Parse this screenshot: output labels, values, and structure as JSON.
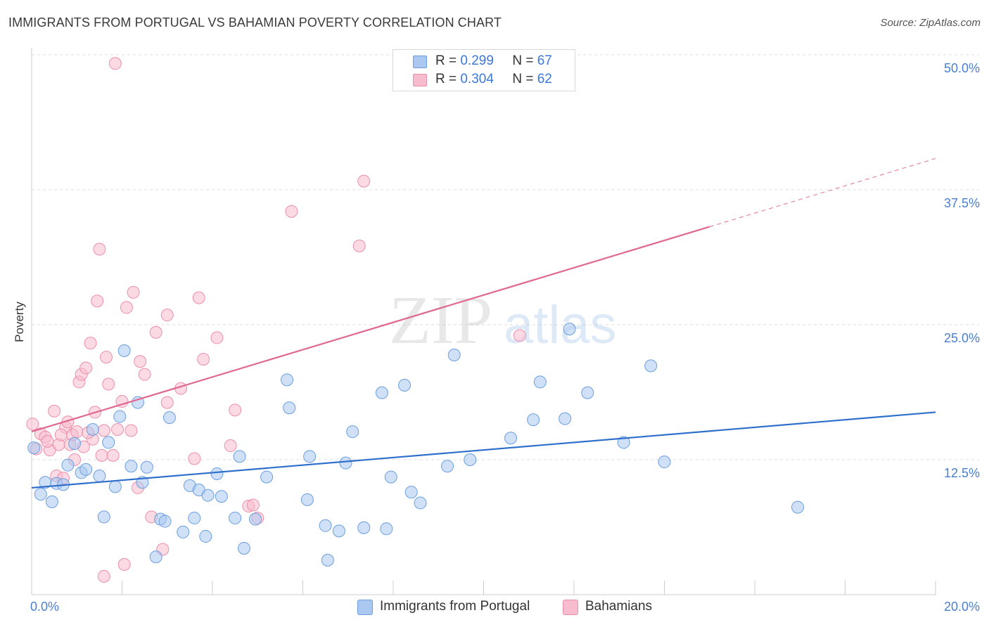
{
  "title": "IMMIGRANTS FROM PORTUGAL VS BAHAMIAN POVERTY CORRELATION CHART",
  "source": "Source: ZipAtlas.com",
  "watermark": {
    "zip": "ZIP",
    "atlas": "atlas"
  },
  "legend": {
    "rows": [
      {
        "r_label": "R =",
        "r_value": "0.299",
        "n_label": "N =",
        "n_value": "67"
      },
      {
        "r_label": "R =",
        "r_value": "0.304",
        "n_label": "N =",
        "n_value": "62"
      }
    ]
  },
  "bottom_legend": [
    "Immigrants from Portugal",
    "Bahamians"
  ],
  "colors": {
    "blue_fill": "#aac8f0",
    "blue_stroke": "#6a9ee0",
    "blue_line": "#2f6fcc",
    "pink_fill": "#f7bccd",
    "pink_stroke": "#ec8fac",
    "pink_line": "#e06890",
    "tick_label": "#4a7fcf",
    "grid": "#dddddd"
  },
  "chart_data": {
    "type": "scatter",
    "title": "IMMIGRANTS FROM PORTUGAL VS BAHAMIAN POVERTY CORRELATION CHART",
    "xlabel": "",
    "ylabel": "Poverty",
    "xlim": [
      0,
      20
    ],
    "ylim": [
      0,
      50
    ],
    "x_tick_labels": [
      "0.0%",
      "20.0%"
    ],
    "y_ticks": [
      12.5,
      25.0,
      37.5,
      50.0
    ],
    "y_tick_labels": [
      "12.5%",
      "25.0%",
      "37.5%",
      "50.0%"
    ],
    "grid": true,
    "legend_position": "top-center",
    "series": [
      {
        "name": "Immigrants from Portugal",
        "r": 0.299,
        "n": 67,
        "trend": {
          "x0": 0,
          "y0": 9.9,
          "x1": 20,
          "y1": 16.9,
          "dashed_from": null
        },
        "points": [
          [
            0.05,
            13.6
          ],
          [
            0.2,
            9.3
          ],
          [
            0.3,
            10.4
          ],
          [
            0.45,
            8.6
          ],
          [
            0.55,
            10.3
          ],
          [
            0.7,
            10.2
          ],
          [
            0.8,
            12.0
          ],
          [
            0.95,
            14.0
          ],
          [
            1.1,
            11.3
          ],
          [
            1.2,
            11.6
          ],
          [
            1.35,
            15.3
          ],
          [
            1.5,
            11.0
          ],
          [
            1.6,
            7.2
          ],
          [
            1.7,
            14.1
          ],
          [
            1.85,
            10.0
          ],
          [
            1.95,
            16.5
          ],
          [
            2.05,
            22.6
          ],
          [
            2.2,
            11.9
          ],
          [
            2.35,
            17.8
          ],
          [
            2.45,
            10.4
          ],
          [
            2.55,
            11.8
          ],
          [
            2.75,
            3.5
          ],
          [
            2.85,
            7.0
          ],
          [
            2.95,
            6.8
          ],
          [
            3.05,
            16.4
          ],
          [
            3.35,
            5.8
          ],
          [
            3.5,
            10.1
          ],
          [
            3.6,
            7.1
          ],
          [
            3.7,
            9.7
          ],
          [
            3.85,
            5.4
          ],
          [
            3.9,
            9.2
          ],
          [
            4.1,
            11.2
          ],
          [
            4.2,
            9.1
          ],
          [
            4.5,
            7.1
          ],
          [
            4.6,
            12.8
          ],
          [
            4.7,
            4.3
          ],
          [
            4.95,
            7.0
          ],
          [
            5.2,
            10.9
          ],
          [
            5.65,
            19.9
          ],
          [
            5.7,
            17.3
          ],
          [
            6.1,
            8.8
          ],
          [
            6.15,
            12.8
          ],
          [
            6.5,
            6.4
          ],
          [
            6.55,
            3.2
          ],
          [
            6.8,
            5.9
          ],
          [
            6.95,
            12.2
          ],
          [
            7.1,
            15.1
          ],
          [
            7.35,
            6.2
          ],
          [
            7.75,
            18.7
          ],
          [
            7.85,
            6.1
          ],
          [
            7.95,
            10.9
          ],
          [
            8.25,
            19.4
          ],
          [
            8.4,
            9.5
          ],
          [
            8.6,
            8.5
          ],
          [
            9.2,
            11.9
          ],
          [
            9.35,
            22.2
          ],
          [
            9.7,
            12.5
          ],
          [
            10.6,
            14.5
          ],
          [
            11.1,
            16.2
          ],
          [
            11.25,
            19.7
          ],
          [
            11.8,
            16.3
          ],
          [
            11.9,
            24.6
          ],
          [
            12.3,
            18.7
          ],
          [
            13.1,
            14.1
          ],
          [
            13.7,
            21.2
          ],
          [
            14.0,
            12.3
          ],
          [
            16.95,
            8.1
          ]
        ]
      },
      {
        "name": "Bahamians",
        "r": 0.304,
        "n": 62,
        "trend": {
          "x0": 0,
          "y0": 15.1,
          "x1": 20,
          "y1": 40.4,
          "dashed_from": 15.0
        },
        "points": [
          [
            0.02,
            15.8
          ],
          [
            0.1,
            13.5
          ],
          [
            0.2,
            14.9
          ],
          [
            0.3,
            14.6
          ],
          [
            0.4,
            13.4
          ],
          [
            0.5,
            17.0
          ],
          [
            0.55,
            11.0
          ],
          [
            0.6,
            13.9
          ],
          [
            0.7,
            10.8
          ],
          [
            0.75,
            15.5
          ],
          [
            0.8,
            16.0
          ],
          [
            0.85,
            13.9
          ],
          [
            0.9,
            14.8
          ],
          [
            0.95,
            12.5
          ],
          [
            1.0,
            15.1
          ],
          [
            1.05,
            19.7
          ],
          [
            1.1,
            20.4
          ],
          [
            1.15,
            13.7
          ],
          [
            1.2,
            21.0
          ],
          [
            1.3,
            23.3
          ],
          [
            1.35,
            14.4
          ],
          [
            1.4,
            16.9
          ],
          [
            1.45,
            27.2
          ],
          [
            1.5,
            32.0
          ],
          [
            1.55,
            12.9
          ],
          [
            1.6,
            15.2
          ],
          [
            1.65,
            22.0
          ],
          [
            1.7,
            19.5
          ],
          [
            1.8,
            12.9
          ],
          [
            1.9,
            15.3
          ],
          [
            2.0,
            17.9
          ],
          [
            2.1,
            26.6
          ],
          [
            2.2,
            15.2
          ],
          [
            2.25,
            28.0
          ],
          [
            2.35,
            9.9
          ],
          [
            2.4,
            21.6
          ],
          [
            2.5,
            20.4
          ],
          [
            2.65,
            7.2
          ],
          [
            2.75,
            24.3
          ],
          [
            2.9,
            4.2
          ],
          [
            3.0,
            17.8
          ],
          [
            3.0,
            25.9
          ],
          [
            3.3,
            19.1
          ],
          [
            3.6,
            12.6
          ],
          [
            3.7,
            27.5
          ],
          [
            3.8,
            21.8
          ],
          [
            4.1,
            23.8
          ],
          [
            4.4,
            13.8
          ],
          [
            4.5,
            17.1
          ],
          [
            4.8,
            8.2
          ],
          [
            4.9,
            8.3
          ],
          [
            5.0,
            7.1
          ],
          [
            1.85,
            49.2
          ],
          [
            1.6,
            1.7
          ],
          [
            2.05,
            2.8
          ],
          [
            5.75,
            35.5
          ],
          [
            7.25,
            32.3
          ],
          [
            7.35,
            38.3
          ],
          [
            10.8,
            24.0
          ],
          [
            0.35,
            14.2
          ],
          [
            0.65,
            14.8
          ],
          [
            1.25,
            15.0
          ]
        ]
      }
    ]
  }
}
